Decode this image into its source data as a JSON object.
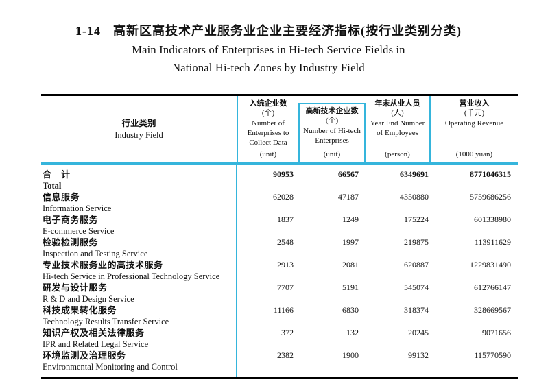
{
  "title": {
    "number": "1-14",
    "zh": "高新区高技术产业服务业企业主要经济指标(按行业类别分类)",
    "en_line1": "Main Indicators of Enterprises in Hi-tech Service Fields in",
    "en_line2": "National Hi-tech Zones by Industry Field"
  },
  "table": {
    "accent_color": "#35b5dc",
    "row_header": {
      "zh": "行业类别",
      "en": "Industry Field"
    },
    "columns": [
      {
        "zh": "入统企业数",
        "zh_unit": "(个)",
        "en": "Number of Enterprises to Collect Data",
        "unit": "(unit)"
      },
      {
        "zh": "高新技术企业数",
        "zh_unit": "(个)",
        "en": "Number of Hi-tech Enterprises",
        "unit": "(unit)"
      },
      {
        "zh": "年末从业人员",
        "zh_unit": "(人)",
        "en": "Year End Number of Employees",
        "unit": "(person)"
      },
      {
        "zh": "营业收入",
        "zh_unit": "(千元)",
        "en": "Operating Revenue",
        "unit": "(1000 yuan)"
      }
    ],
    "rows": [
      {
        "zh": "合　计",
        "en": "Total",
        "values": [
          "90953",
          "66567",
          "6349691",
          "8771046315"
        ]
      },
      {
        "zh": "信息服务",
        "en": "Information Service",
        "values": [
          "62028",
          "47187",
          "4350880",
          "5759686256"
        ]
      },
      {
        "zh": "电子商务服务",
        "en": "E-commerce Service",
        "values": [
          "1837",
          "1249",
          "175224",
          "601338980"
        ]
      },
      {
        "zh": "检验检测服务",
        "en": "Inspection and Testing Service",
        "values": [
          "2548",
          "1997",
          "219875",
          "113911629"
        ]
      },
      {
        "zh": "专业技术服务业的高技术服务",
        "en": "Hi-tech Service in Professional Technology Service",
        "values": [
          "2913",
          "2081",
          "620887",
          "1229831490"
        ]
      },
      {
        "zh": "研发与设计服务",
        "en": "R & D and Design Service",
        "values": [
          "7707",
          "5191",
          "545074",
          "612766147"
        ]
      },
      {
        "zh": "科技成果转化服务",
        "en": "Technology Results Transfer Service",
        "values": [
          "11166",
          "6830",
          "318374",
          "328669567"
        ]
      },
      {
        "zh": "知识产权及相关法律服务",
        "en": "IPR and Related Legal Service",
        "values": [
          "372",
          "132",
          "20245",
          "9071656"
        ]
      },
      {
        "zh": "环境监测及治理服务",
        "en": "Environmental Monitoring and Control",
        "values": [
          "2382",
          "1900",
          "99132",
          "115770590"
        ]
      }
    ]
  }
}
